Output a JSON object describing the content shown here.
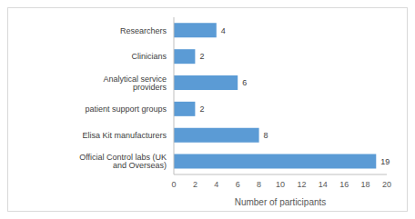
{
  "chart_data": {
    "type": "bar",
    "orientation": "horizontal",
    "categories": [
      "Official Control labs (UK and Overseas)",
      "Elisa Kit manufacturers",
      "patient support groups",
      "Analytical service providers",
      "Clinicians",
      "Researchers"
    ],
    "values": [
      19,
      8,
      2,
      6,
      2,
      4
    ],
    "color": "#5b9bd5",
    "xlabel": "Number of participants",
    "xlim": [
      0,
      20
    ],
    "xticks": [
      0,
      2,
      4,
      6,
      8,
      10,
      12,
      14,
      16,
      18,
      20
    ],
    "grid": false,
    "data_labels": true
  }
}
